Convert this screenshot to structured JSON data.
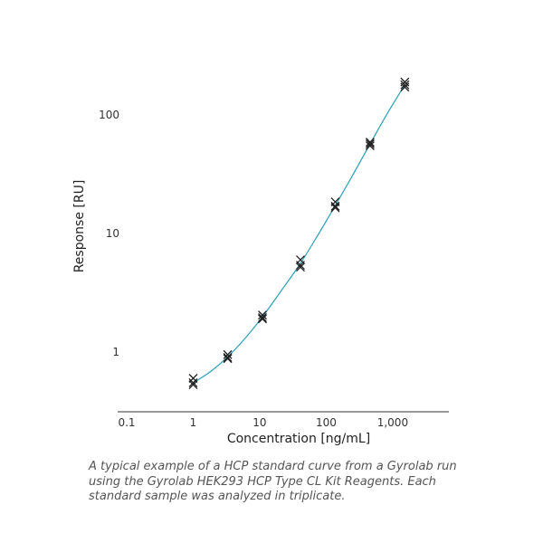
{
  "chart_data": {
    "type": "scatter",
    "title": "",
    "xlabel": "Concentration [ng/mL]",
    "ylabel": "Response [RU]",
    "x_scale": "log",
    "y_scale": "log",
    "xlim": [
      0.1,
      7000
    ],
    "ylim": [
      0.33,
      250
    ],
    "x_ticks": [
      {
        "value": 0.1,
        "label": "0.1"
      },
      {
        "value": 1,
        "label": "1"
      },
      {
        "value": 10,
        "label": "10"
      },
      {
        "value": 100,
        "label": "100"
      },
      {
        "value": 1000,
        "label": "1,000"
      }
    ],
    "y_ticks": [
      {
        "value": 1,
        "label": "1"
      },
      {
        "value": 10,
        "label": "10"
      },
      {
        "value": 100,
        "label": "100"
      }
    ],
    "grid": false,
    "legend": "none",
    "series": [
      {
        "marker": "x",
        "color": "#222222",
        "points": [
          {
            "x": 1.0,
            "y": 0.6
          },
          {
            "x": 1.0,
            "y": 0.55
          },
          {
            "x": 1.0,
            "y": 0.53
          },
          {
            "x": 3.3,
            "y": 0.95
          },
          {
            "x": 3.3,
            "y": 0.9
          },
          {
            "x": 3.3,
            "y": 0.88
          },
          {
            "x": 11,
            "y": 2.05
          },
          {
            "x": 11,
            "y": 1.95
          },
          {
            "x": 11,
            "y": 1.9
          },
          {
            "x": 41,
            "y": 6.0
          },
          {
            "x": 41,
            "y": 5.4
          },
          {
            "x": 41,
            "y": 5.2
          },
          {
            "x": 137,
            "y": 18.5
          },
          {
            "x": 137,
            "y": 17.0
          },
          {
            "x": 137,
            "y": 16.5
          },
          {
            "x": 457,
            "y": 59
          },
          {
            "x": 457,
            "y": 57
          },
          {
            "x": 457,
            "y": 55
          },
          {
            "x": 1524,
            "y": 190
          },
          {
            "x": 1524,
            "y": 180
          },
          {
            "x": 1524,
            "y": 172
          }
        ]
      }
    ],
    "fit_curve": {
      "color": "#2aa0b8",
      "points": [
        {
          "x": 1.0,
          "y": 0.55
        },
        {
          "x": 1.8,
          "y": 0.68
        },
        {
          "x": 3.3,
          "y": 0.91
        },
        {
          "x": 6,
          "y": 1.3
        },
        {
          "x": 11,
          "y": 1.98
        },
        {
          "x": 22,
          "y": 3.4
        },
        {
          "x": 41,
          "y": 5.6
        },
        {
          "x": 75,
          "y": 9.7
        },
        {
          "x": 137,
          "y": 17.2
        },
        {
          "x": 250,
          "y": 31
        },
        {
          "x": 457,
          "y": 57
        },
        {
          "x": 830,
          "y": 103
        },
        {
          "x": 1524,
          "y": 180
        }
      ]
    }
  },
  "caption": "A typical example of a HCP standard curve from a Gyrolab run using the Gyrolab HEK293 HCP Type CL Kit Reagents. Each standard sample was analyzed in triplicate."
}
